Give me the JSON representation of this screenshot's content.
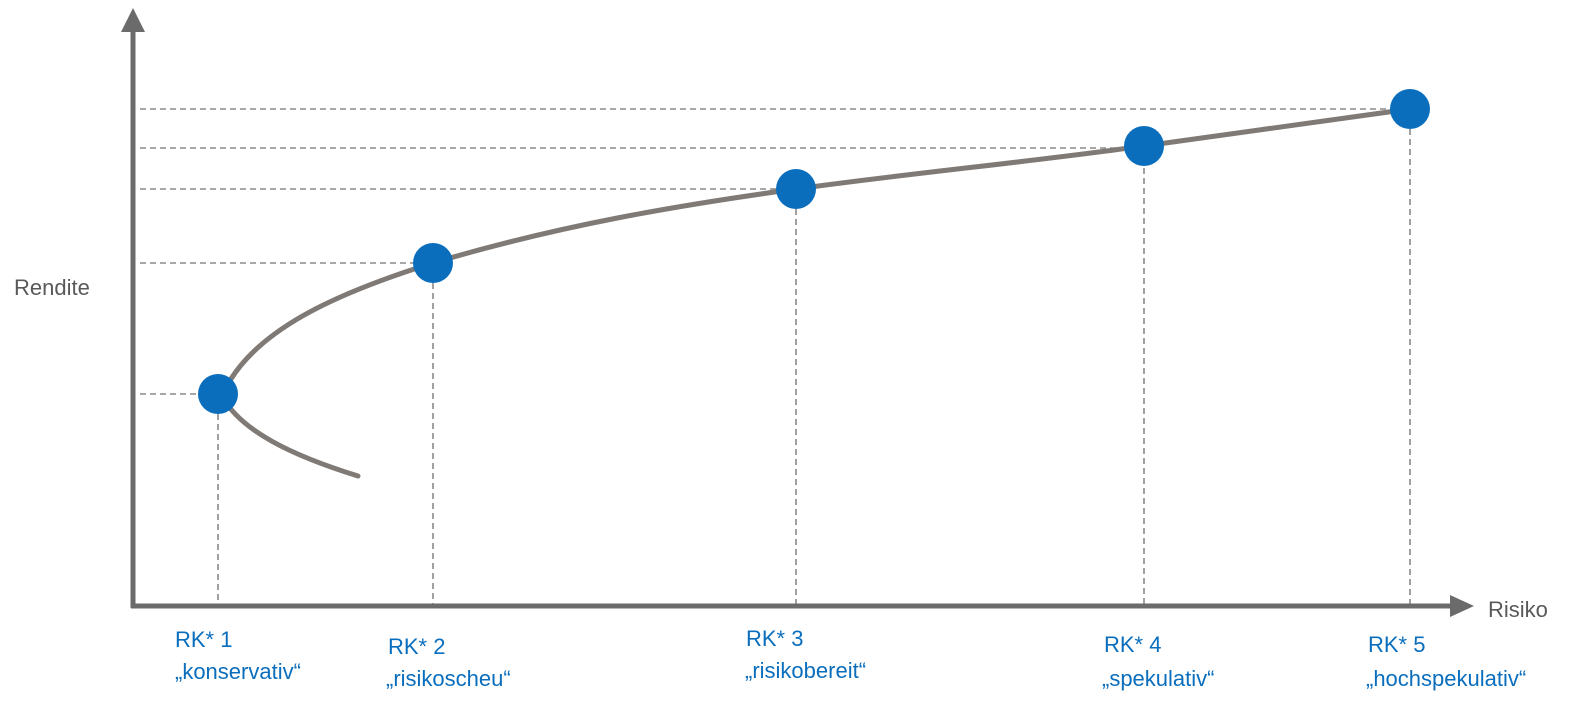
{
  "chart_data": {
    "type": "line",
    "title": "",
    "xlabel": "Risiko",
    "ylabel": "Rendite",
    "grid": false,
    "legend": "none",
    "curve": "efficient-frontier",
    "colors": {
      "axis": "#6b6b6b",
      "curve": "#7f7a76",
      "point": "#0a6ebd",
      "guide": "#8a8a8a",
      "label": "#0a6ebd",
      "axis_text": "#595959"
    },
    "points": [
      {
        "id": "rk1",
        "class": "RK* 1",
        "name": "„konservativ“"
      },
      {
        "id": "rk2",
        "class": "RK* 2",
        "name": "„risikoscheu“"
      },
      {
        "id": "rk3",
        "class": "RK* 3",
        "name": "„risikobereit“"
      },
      {
        "id": "rk4",
        "class": "RK* 4",
        "name": "„spekulativ“"
      },
      {
        "id": "rk5",
        "class": "RK* 5",
        "name": "„hochspekulativ“"
      }
    ]
  }
}
